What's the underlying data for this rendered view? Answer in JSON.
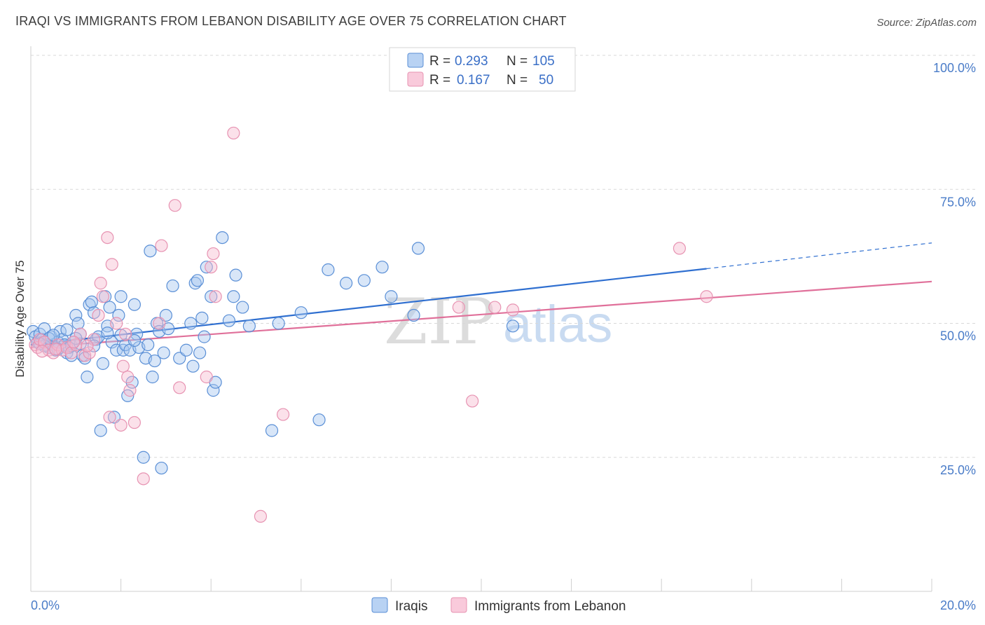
{
  "header": {
    "title": "IRAQI VS IMMIGRANTS FROM LEBANON DISABILITY AGE OVER 75 CORRELATION CHART",
    "source": "Source: ZipAtlas.com"
  },
  "legend_top": {
    "rows": [
      {
        "r_label": "R =",
        "r_value": "0.293",
        "n_label": "N =",
        "n_value": "105"
      },
      {
        "r_label": "R =",
        "r_value": "0.167",
        "n_label": "N =",
        "n_value": "50"
      }
    ]
  },
  "legend_bottom": {
    "items": [
      {
        "label": "Iraqis"
      },
      {
        "label": "Immigrants from Lebanon"
      }
    ]
  },
  "watermark": {
    "part1": "ZIP",
    "part2": "atlas"
  },
  "colors": {
    "blue_fill": "#a8c8f0",
    "blue_stroke": "#5a8fd6",
    "blue_line": "#2f6fd0",
    "pink_fill": "#f7bcd0",
    "pink_stroke": "#e793b2",
    "pink_line": "#e0709a",
    "tick_text": "#4a7cc8",
    "grid": "#d8d8d8"
  },
  "chart_data": {
    "type": "scatter",
    "title": "IRAQI VS IMMIGRANTS FROM LEBANON DISABILITY AGE OVER 75 CORRELATION CHART",
    "xlabel": "",
    "ylabel": "Disability Age Over 75",
    "xlim": [
      0,
      20
    ],
    "ylim": [
      0,
      100
    ],
    "x_tick_labels": [
      "0.0%",
      "20.0%"
    ],
    "y_ticks": [
      25,
      50,
      75,
      100
    ],
    "y_tick_labels": [
      "25.0%",
      "50.0%",
      "75.0%",
      "100.0%"
    ],
    "series": [
      {
        "name": "Iraqis",
        "r": 0.293,
        "n": 105,
        "trend": {
          "x0": 0.0,
          "y0": 46.0,
          "x1": 15.0,
          "y1": 60.2,
          "dashed_to_x": 20.0,
          "dashed_to_y": 65.0
        },
        "points": [
          [
            0.05,
            48.5
          ],
          [
            0.1,
            47.5
          ],
          [
            0.15,
            46.5
          ],
          [
            0.2,
            48
          ],
          [
            0.25,
            47
          ],
          [
            0.3,
            49
          ],
          [
            0.35,
            46
          ],
          [
            0.4,
            45.5
          ],
          [
            0.45,
            47.5
          ],
          [
            0.5,
            46
          ],
          [
            0.55,
            45
          ],
          [
            0.6,
            46.5
          ],
          [
            0.65,
            48.5
          ],
          [
            0.7,
            47
          ],
          [
            0.75,
            46
          ],
          [
            0.8,
            44.5
          ],
          [
            0.85,
            45.5
          ],
          [
            0.9,
            44
          ],
          [
            0.95,
            46.5
          ],
          [
            1.0,
            51.5
          ],
          [
            1.05,
            50
          ],
          [
            1.1,
            48
          ],
          [
            1.15,
            44
          ],
          [
            1.2,
            43.5
          ],
          [
            1.25,
            40
          ],
          [
            1.3,
            53.5
          ],
          [
            1.35,
            54
          ],
          [
            1.4,
            52
          ],
          [
            1.45,
            47
          ],
          [
            1.5,
            47.5
          ],
          [
            1.55,
            30
          ],
          [
            1.6,
            42.5
          ],
          [
            1.65,
            55
          ],
          [
            1.7,
            49.5
          ],
          [
            1.75,
            53
          ],
          [
            1.8,
            46.5
          ],
          [
            1.85,
            32.5
          ],
          [
            1.9,
            45
          ],
          [
            1.95,
            51.5
          ],
          [
            2.0,
            55
          ],
          [
            2.05,
            45
          ],
          [
            2.1,
            46
          ],
          [
            2.15,
            36.5
          ],
          [
            2.2,
            45
          ],
          [
            2.25,
            39
          ],
          [
            2.3,
            53.5
          ],
          [
            2.35,
            48
          ],
          [
            2.4,
            45.5
          ],
          [
            2.5,
            25
          ],
          [
            2.55,
            43.5
          ],
          [
            2.6,
            46
          ],
          [
            2.65,
            63.5
          ],
          [
            2.7,
            40
          ],
          [
            2.75,
            43
          ],
          [
            2.8,
            50
          ],
          [
            2.85,
            48.5
          ],
          [
            2.9,
            23
          ],
          [
            2.95,
            44.5
          ],
          [
            3.0,
            51.5
          ],
          [
            3.05,
            49
          ],
          [
            3.15,
            57
          ],
          [
            3.3,
            43.5
          ],
          [
            3.45,
            45
          ],
          [
            3.55,
            50
          ],
          [
            3.6,
            42
          ],
          [
            3.65,
            57.5
          ],
          [
            3.7,
            58
          ],
          [
            3.75,
            44.5
          ],
          [
            3.8,
            51
          ],
          [
            3.85,
            47.5
          ],
          [
            3.9,
            60.5
          ],
          [
            4.0,
            55
          ],
          [
            4.05,
            37.5
          ],
          [
            4.1,
            39
          ],
          [
            4.25,
            66
          ],
          [
            4.4,
            50.5
          ],
          [
            4.5,
            55
          ],
          [
            4.55,
            59
          ],
          [
            4.7,
            53
          ],
          [
            4.85,
            49.5
          ],
          [
            5.35,
            30
          ],
          [
            5.5,
            50
          ],
          [
            6.0,
            52
          ],
          [
            6.4,
            32
          ],
          [
            6.6,
            60
          ],
          [
            7.0,
            57.5
          ],
          [
            7.4,
            58
          ],
          [
            7.8,
            60.5
          ],
          [
            8.0,
            55
          ],
          [
            8.5,
            51.5
          ],
          [
            8.6,
            64
          ],
          [
            10.7,
            49.5
          ],
          [
            0.3,
            45.8
          ],
          [
            0.4,
            47.2
          ],
          [
            0.6,
            45.2
          ],
          [
            0.9,
            45.8
          ],
          [
            1.1,
            46.2
          ],
          [
            1.4,
            45.8
          ],
          [
            1.7,
            48.2
          ],
          [
            2.0,
            47.8
          ],
          [
            2.3,
            46.8
          ],
          [
            0.2,
            46.2
          ],
          [
            0.5,
            47.8
          ],
          [
            0.8,
            48.8
          ],
          [
            1.0,
            47.2
          ]
        ]
      },
      {
        "name": "Immigrants from Lebanon",
        "r": 0.167,
        "n": 50,
        "trend": {
          "x0": 0.0,
          "y0": 45.5,
          "x1": 20.0,
          "y1": 57.8
        },
        "points": [
          [
            0.1,
            46
          ],
          [
            0.15,
            45.5
          ],
          [
            0.2,
            47
          ],
          [
            0.3,
            46.5
          ],
          [
            0.4,
            45
          ],
          [
            0.5,
            44.5
          ],
          [
            0.6,
            46
          ],
          [
            0.7,
            45
          ],
          [
            0.8,
            45.5
          ],
          [
            0.9,
            44.5
          ],
          [
            1.0,
            46
          ],
          [
            1.1,
            48
          ],
          [
            1.2,
            44
          ],
          [
            1.3,
            44.5
          ],
          [
            1.4,
            47
          ],
          [
            1.5,
            51.5
          ],
          [
            1.55,
            57.5
          ],
          [
            1.6,
            55
          ],
          [
            1.7,
            66
          ],
          [
            1.75,
            32.5
          ],
          [
            1.8,
            61
          ],
          [
            1.9,
            50
          ],
          [
            2.0,
            31
          ],
          [
            2.05,
            42
          ],
          [
            2.1,
            48
          ],
          [
            2.15,
            40
          ],
          [
            2.2,
            37.5
          ],
          [
            2.3,
            31.5
          ],
          [
            2.5,
            21
          ],
          [
            2.85,
            50
          ],
          [
            2.9,
            64.5
          ],
          [
            3.2,
            72
          ],
          [
            3.3,
            38
          ],
          [
            3.9,
            40
          ],
          [
            4.0,
            60.5
          ],
          [
            4.05,
            63
          ],
          [
            4.1,
            55
          ],
          [
            4.5,
            85.5
          ],
          [
            5.1,
            14
          ],
          [
            5.6,
            33
          ],
          [
            9.5,
            53
          ],
          [
            9.8,
            35.5
          ],
          [
            10.3,
            53
          ],
          [
            10.7,
            52.5
          ],
          [
            14.4,
            64
          ],
          [
            15.0,
            55
          ],
          [
            0.25,
            44.8
          ],
          [
            0.55,
            45.2
          ],
          [
            0.95,
            46.5
          ],
          [
            1.25,
            45.8
          ]
        ]
      }
    ]
  }
}
